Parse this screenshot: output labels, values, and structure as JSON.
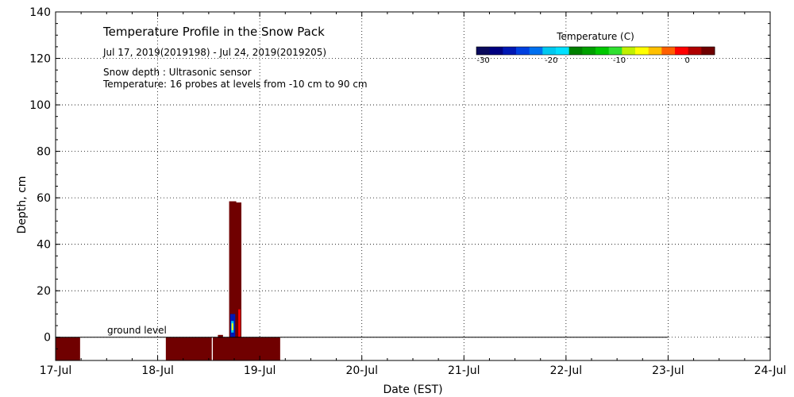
{
  "chart_data": {
    "type": "heatmap",
    "title": "Temperature Profile in the Snow Pack",
    "subtitle": "Jul 17, 2019(2019198) - Jul 24, 2019(2019205)",
    "notes": [
      "Snow depth : Ultrasonic sensor",
      "Temperature: 16 probes at levels from -10 cm to 90 cm"
    ],
    "xlabel": "Date (EST)",
    "ylabel": "Depth, cm",
    "x_ticks": [
      "17-Jul",
      "18-Jul",
      "19-Jul",
      "20-Jul",
      "21-Jul",
      "22-Jul",
      "23-Jul",
      "24-Jul"
    ],
    "xlim": [
      0,
      7
    ],
    "y_ticks": [
      0,
      20,
      40,
      60,
      80,
      100,
      120,
      140
    ],
    "ylim": [
      -10,
      140
    ],
    "grid": true,
    "ground_level_label": "ground level",
    "ground_level": {
      "x_start": 0,
      "x_end": 6.0,
      "y": 0
    },
    "colorbar": {
      "title": "Temperature (C)",
      "ticks": [
        -30,
        -20,
        -10,
        0
      ],
      "vmin": -31,
      "vmax": 4,
      "colors": [
        "#0a0a5c",
        "#000080",
        "#0018b4",
        "#0040e0",
        "#0070f0",
        "#00c8f0",
        "#00e0ff",
        "#008000",
        "#00a000",
        "#00c800",
        "#30e030",
        "#c0f000",
        "#ffff00",
        "#ffc000",
        "#ff6000",
        "#ff0000",
        "#b00000",
        "#700000"
      ]
    },
    "cells": [
      {
        "x0": 0.0,
        "x1": 0.24,
        "y0": -10,
        "y1": 0,
        "color": "#700000"
      },
      {
        "x0": 1.08,
        "x1": 1.53,
        "y0": -10,
        "y1": 0,
        "color": "#700000"
      },
      {
        "x0": 1.54,
        "x1": 2.2,
        "y0": -10,
        "y1": 0,
        "color": "#700000"
      },
      {
        "x0": 1.59,
        "x1": 1.64,
        "y0": 0,
        "y1": 1,
        "color": "#700000"
      },
      {
        "x0": 1.7,
        "x1": 1.77,
        "y0": 0,
        "y1": 58.5,
        "color": "#700000"
      },
      {
        "x0": 1.76,
        "x1": 1.82,
        "y0": 0,
        "y1": 58,
        "color": "#700000"
      },
      {
        "x0": 1.71,
        "x1": 1.76,
        "y0": 0,
        "y1": 10,
        "color": "#0018b4"
      },
      {
        "x0": 1.72,
        "x1": 1.745,
        "y0": 2,
        "y1": 7,
        "color": "#00c8f0"
      },
      {
        "x0": 1.725,
        "x1": 1.74,
        "y0": 3,
        "y1": 6,
        "color": "#ffff00"
      },
      {
        "x0": 1.79,
        "x1": 1.81,
        "y0": 0,
        "y1": 12,
        "color": "#ff0000"
      }
    ]
  }
}
